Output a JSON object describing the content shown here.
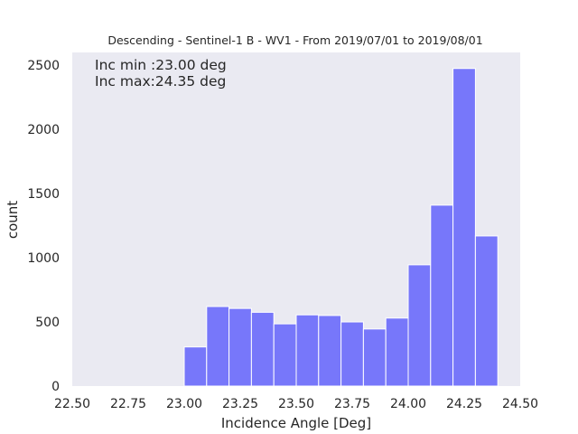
{
  "chart_data": {
    "type": "bar",
    "title": "Descending - Sentinel-1 B - WV1 - From 2019/07/01 to 2019/08/01",
    "xlabel": "Incidence Angle [Deg]",
    "ylabel": "count",
    "xlim": [
      22.5,
      24.5
    ],
    "ylim": [
      0,
      2600
    ],
    "xticks": [
      "22.50",
      "22.75",
      "23.00",
      "23.25",
      "23.50",
      "23.75",
      "24.00",
      "24.25",
      "24.50"
    ],
    "yticks": [
      "0",
      "500",
      "1000",
      "1500",
      "2000",
      "2500"
    ],
    "bin_width": 0.1,
    "bins": [
      {
        "x": 23.0,
        "count": 305
      },
      {
        "x": 23.1,
        "count": 620
      },
      {
        "x": 23.2,
        "count": 605
      },
      {
        "x": 23.3,
        "count": 575
      },
      {
        "x": 23.4,
        "count": 485
      },
      {
        "x": 23.5,
        "count": 555
      },
      {
        "x": 23.6,
        "count": 550
      },
      {
        "x": 23.7,
        "count": 500
      },
      {
        "x": 23.8,
        "count": 445
      },
      {
        "x": 23.9,
        "count": 530
      },
      {
        "x": 24.0,
        "count": 945
      },
      {
        "x": 24.1,
        "count": 1410
      },
      {
        "x": 24.2,
        "count": 2475
      },
      {
        "x": 24.3,
        "count": 1170
      }
    ],
    "annotation": [
      "Inc min :23.00 deg",
      "Inc max:24.35 deg"
    ],
    "grid": false,
    "colors": {
      "bar": "#7777fa",
      "plot_background": "#eaeaf2"
    }
  }
}
